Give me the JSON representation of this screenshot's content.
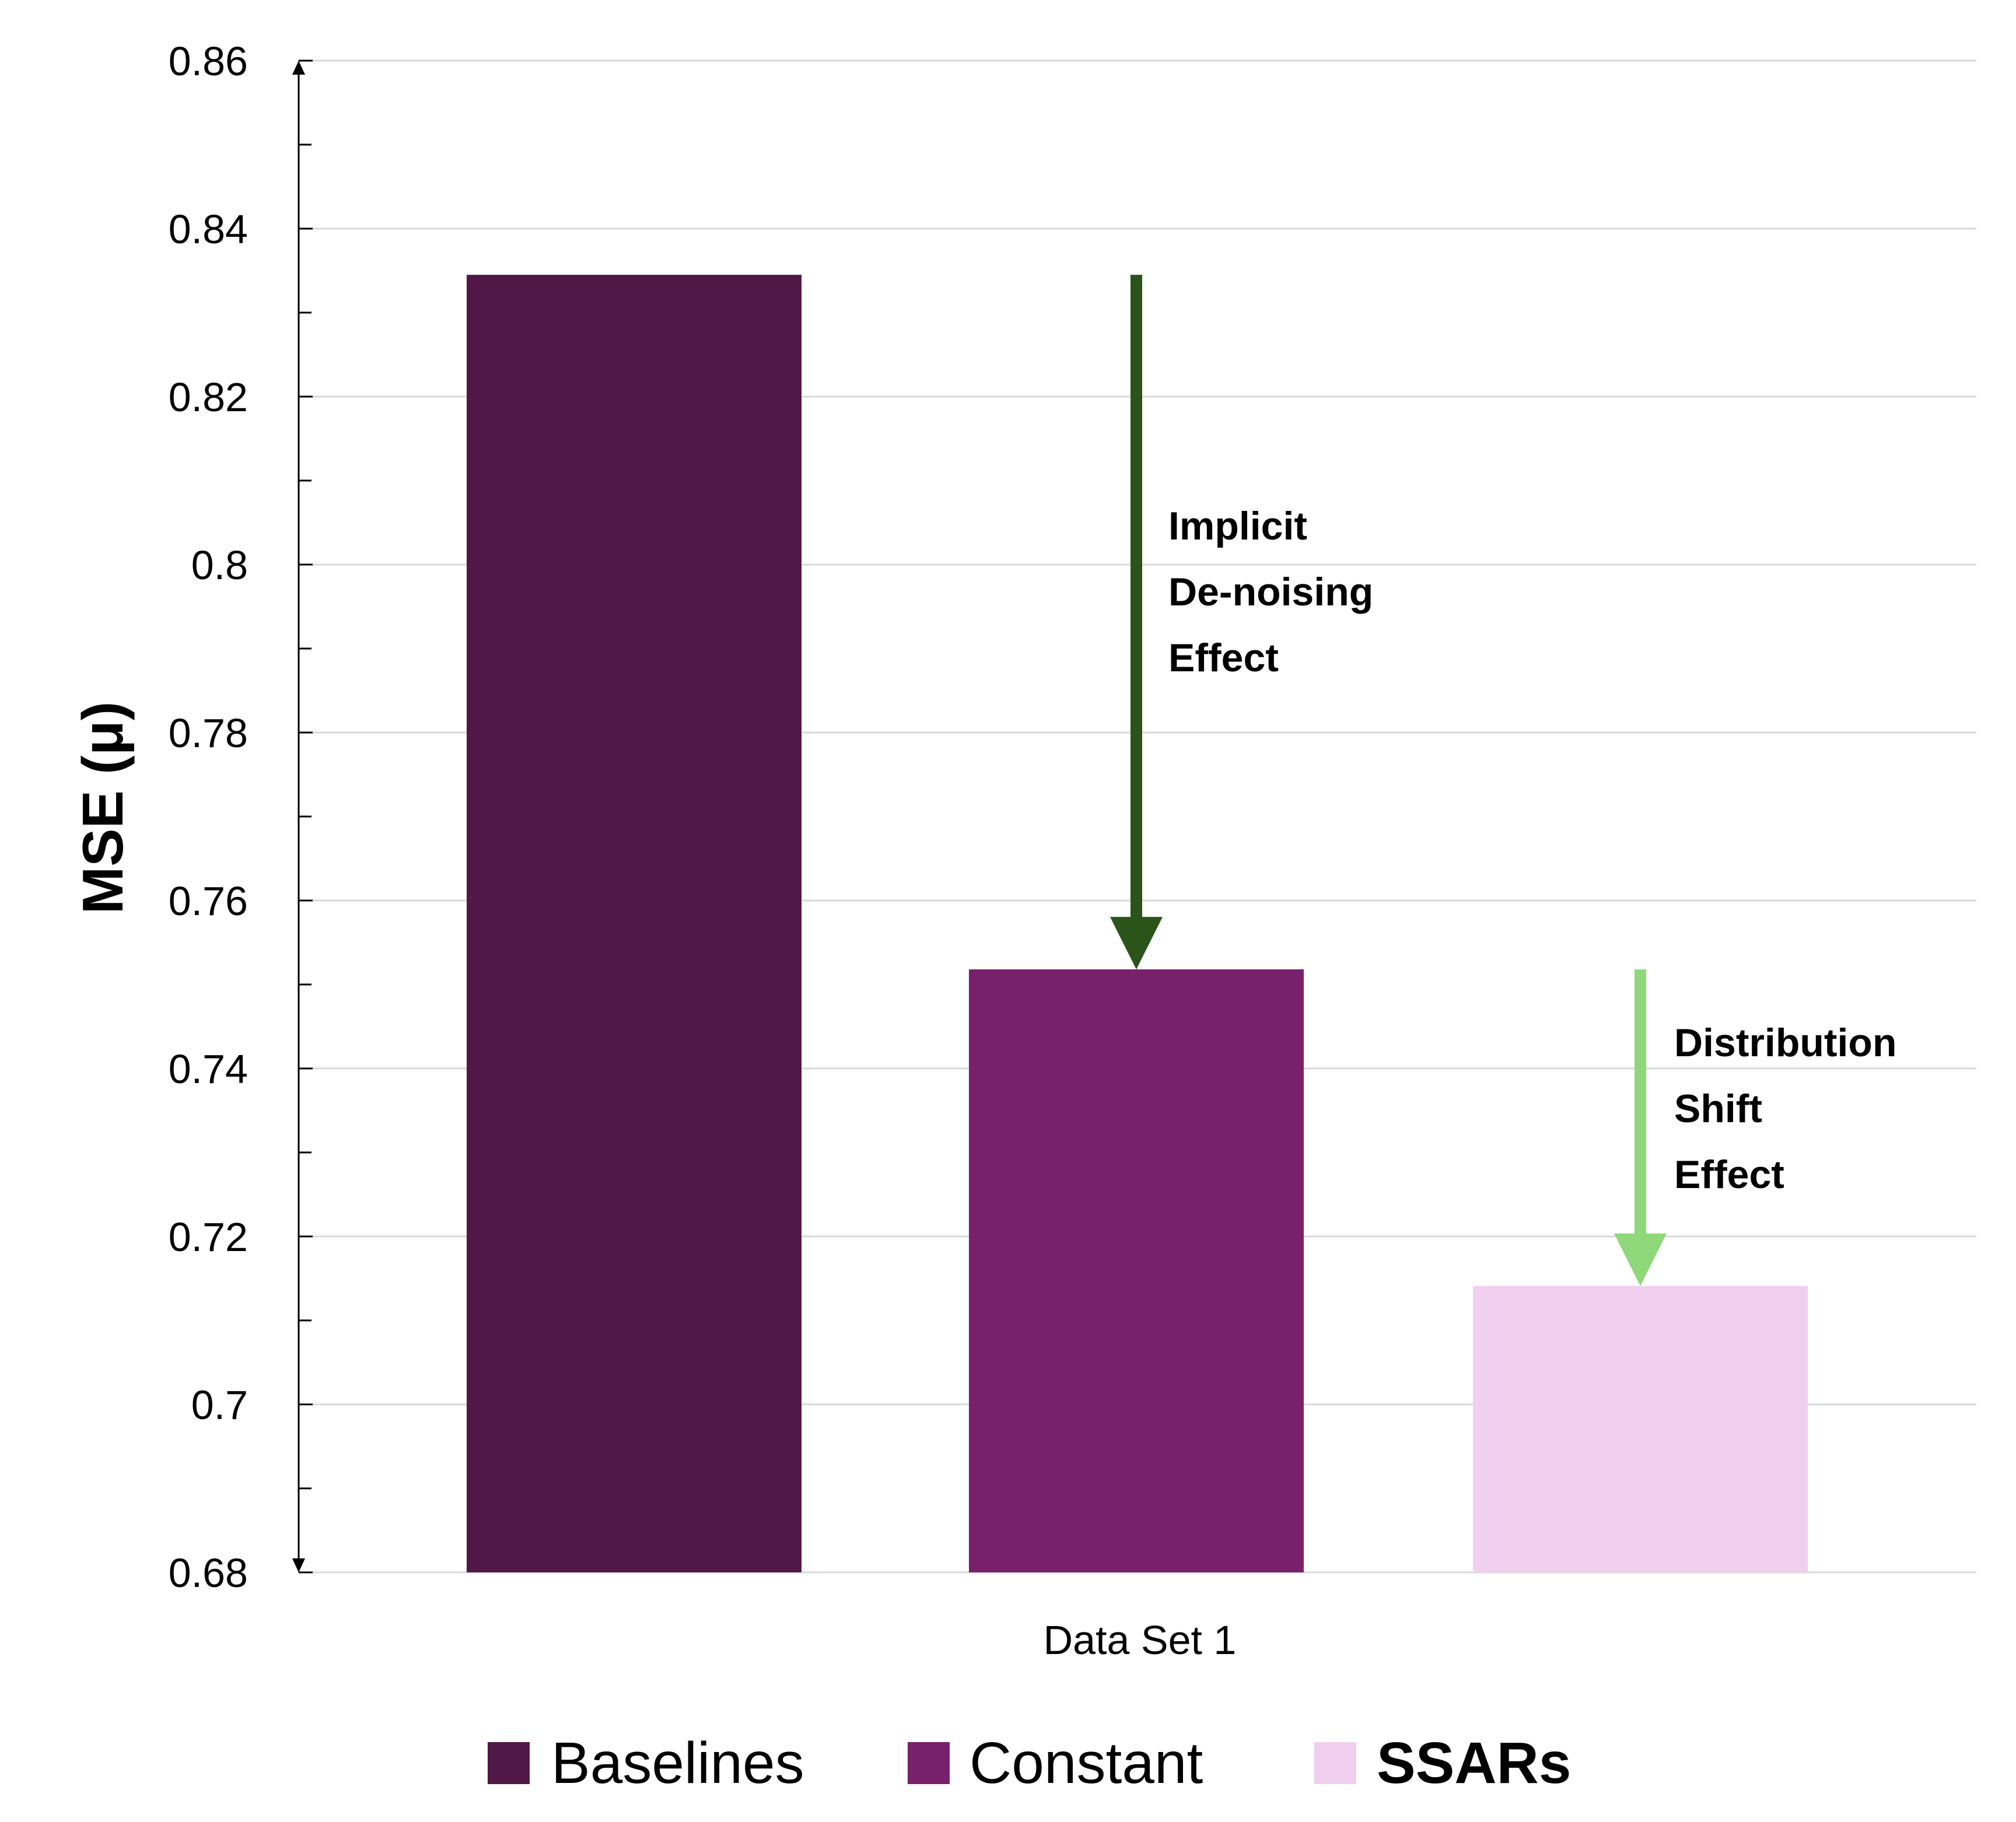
{
  "chart_data": {
    "type": "bar",
    "categories": [
      "Data Set 1"
    ],
    "series": [
      {
        "name": "Baselines",
        "values": [
          0.8345
        ],
        "color": "#511746",
        "bold": false
      },
      {
        "name": "Constant",
        "values": [
          0.7518
        ],
        "color": "#78206b",
        "bold": false
      },
      {
        "name": "SSARs",
        "values": [
          0.7141
        ],
        "color": "#f1cfee",
        "bold": true
      }
    ],
    "title": "",
    "xlabel": "",
    "ylabel": "MSE (μ)",
    "ylim": [
      0.68,
      0.86
    ],
    "yticks": [
      "0.68",
      "0.7",
      "0.72",
      "0.74",
      "0.76",
      "0.78",
      "0.8",
      "0.82",
      "0.84",
      "0.86"
    ],
    "grid": true,
    "legend_position": "bottom",
    "annotations": [
      {
        "lines": [
          "Implicit",
          "De-noising",
          "Effect"
        ],
        "arrow_color": "#2a5419",
        "from_value": 0.8345,
        "to_value": 0.7518,
        "at_series": "Constant"
      },
      {
        "lines": [
          "Distribution",
          "Shift",
          "Effect"
        ],
        "arrow_color": "#8ed87a",
        "from_value": 0.7518,
        "to_value": 0.7141,
        "at_series": "SSARs"
      }
    ]
  }
}
